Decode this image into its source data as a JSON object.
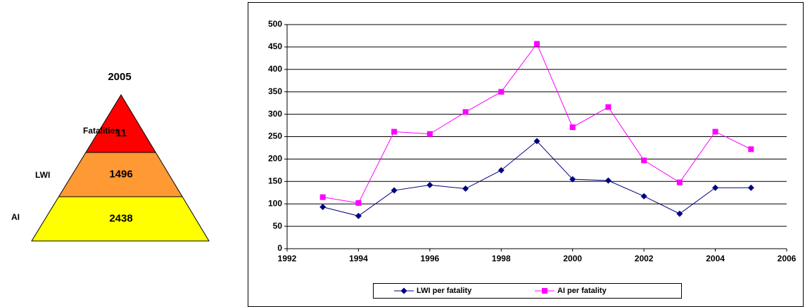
{
  "pyramid": {
    "title": "2005",
    "levels": [
      {
        "label": "Fatalities",
        "value": 11,
        "color": "#ff0000"
      },
      {
        "label": "LWI",
        "value": 1496,
        "color": "#ff9933"
      },
      {
        "label": "AI",
        "value": 2438,
        "color": "#ffff00"
      }
    ]
  },
  "chart_data": {
    "type": "line",
    "x": [
      1993,
      1994,
      1995,
      1996,
      1997,
      1998,
      1999,
      2000,
      2001,
      2002,
      2003,
      2004,
      2005
    ],
    "series": [
      {
        "name": "LWI per fatality",
        "color": "#000080",
        "marker": "diamond",
        "values": [
          93,
          73,
          130,
          142,
          134,
          175,
          240,
          155,
          152,
          117,
          78,
          136,
          136
        ]
      },
      {
        "name": "AI per fatality",
        "color": "#ff00ff",
        "marker": "square",
        "values": [
          115,
          102,
          261,
          256,
          305,
          350,
          457,
          271,
          316,
          197,
          148,
          261,
          222
        ]
      }
    ],
    "xlim": [
      1992,
      2006
    ],
    "xticks": [
      1992,
      1994,
      1996,
      1998,
      2000,
      2002,
      2004,
      2006
    ],
    "ylim": [
      0,
      500
    ],
    "yticks": [
      0,
      50,
      100,
      150,
      200,
      250,
      300,
      350,
      400,
      450,
      500
    ],
    "grid": true,
    "legend": "bottom"
  }
}
